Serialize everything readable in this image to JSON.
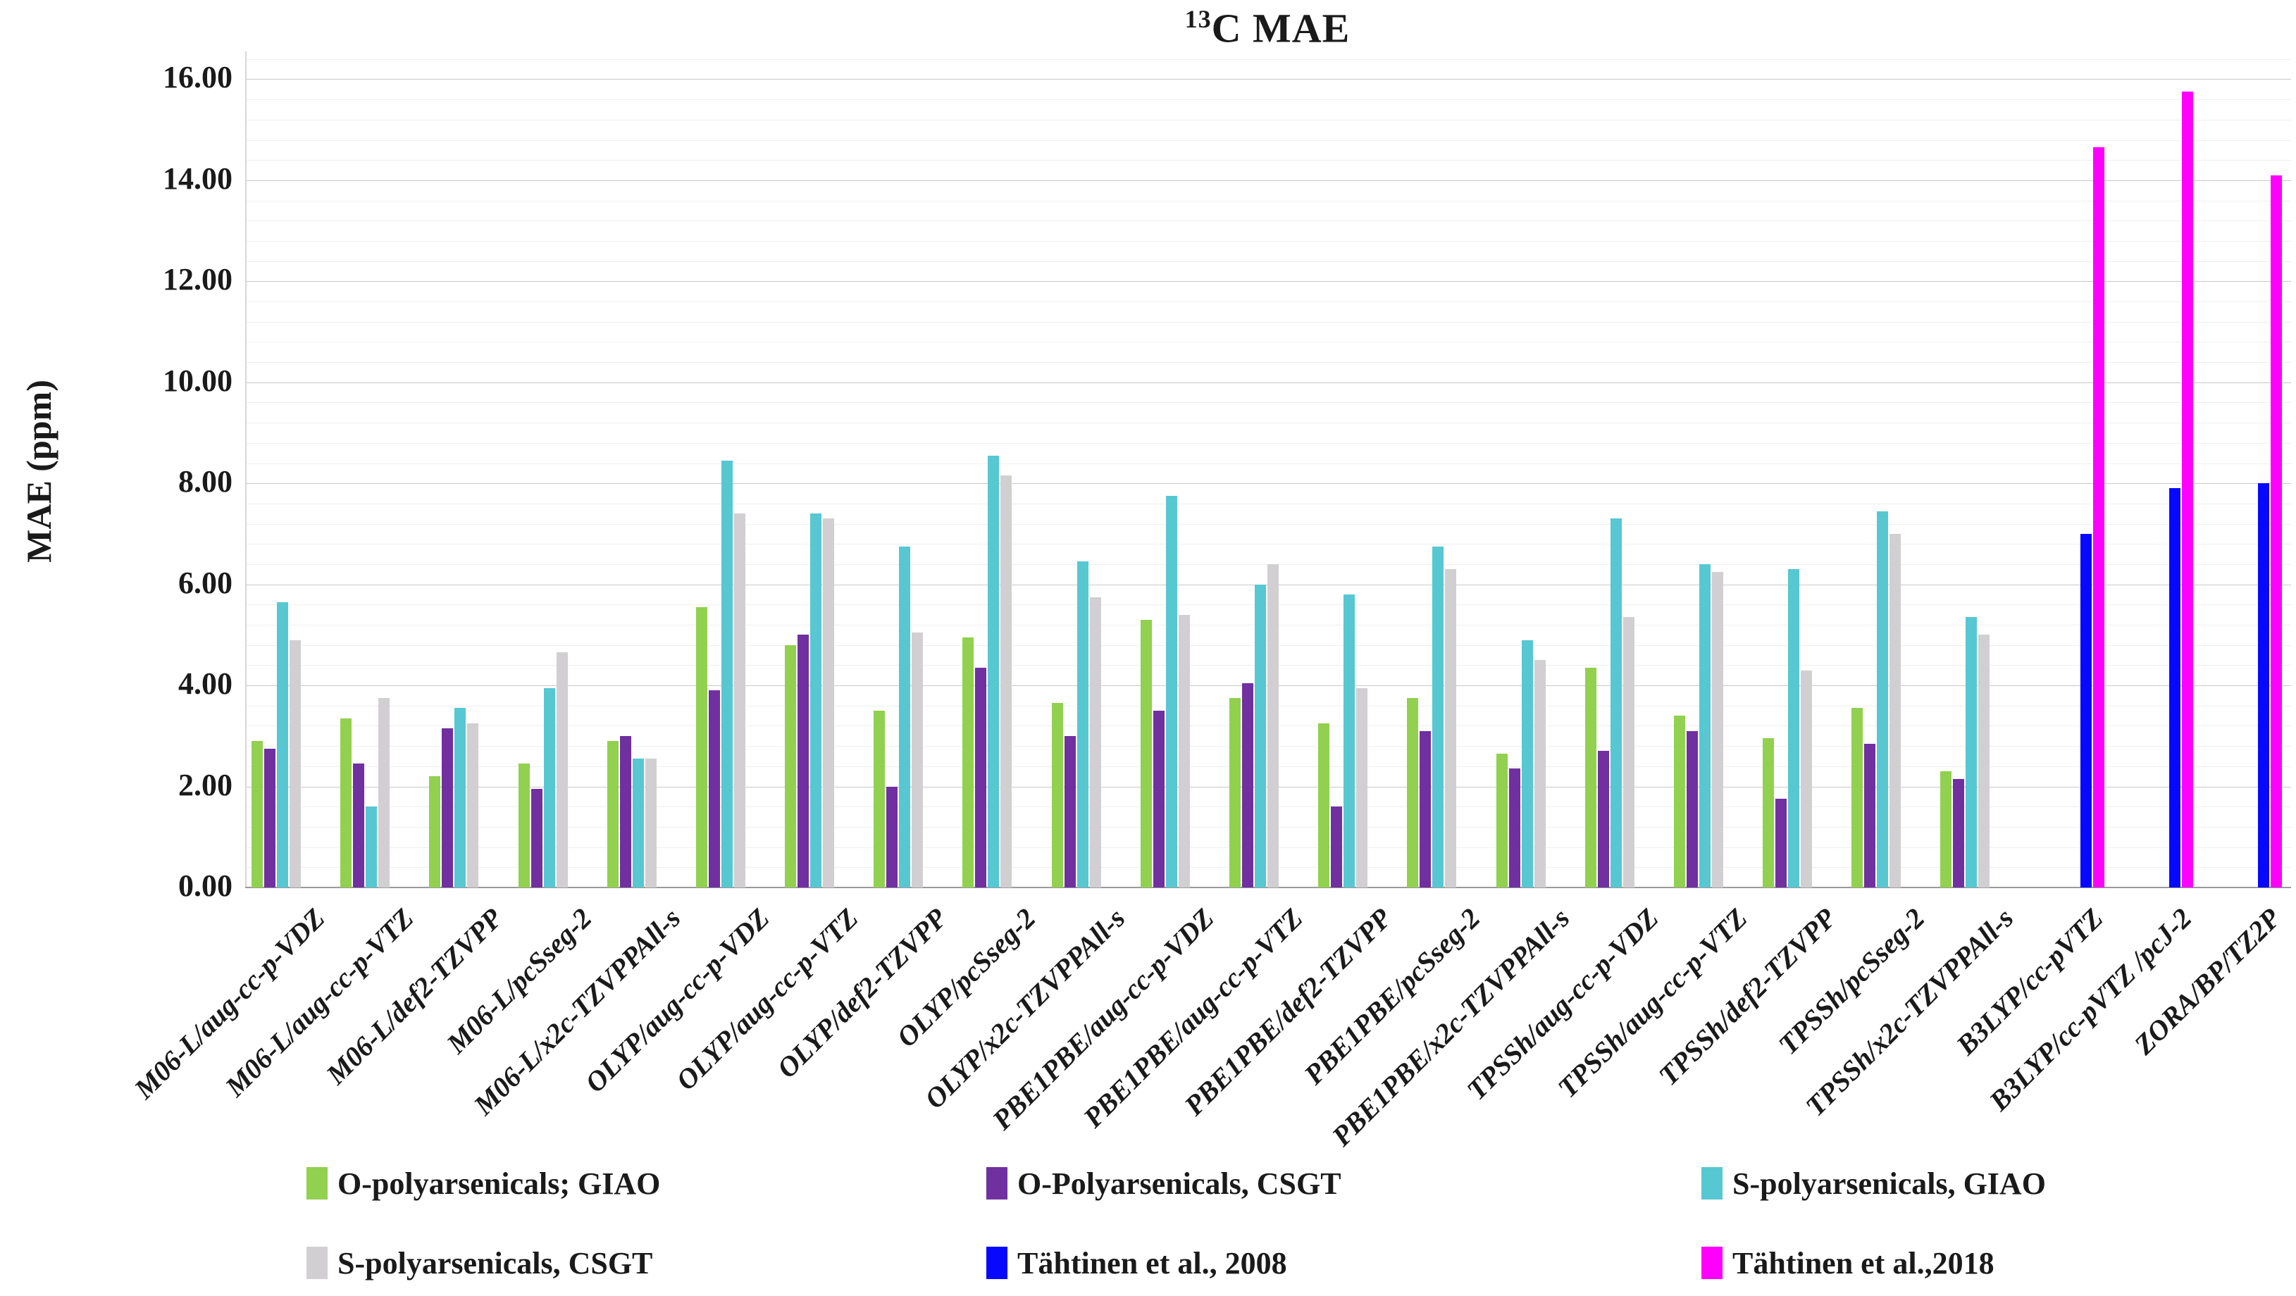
{
  "title": {
    "sup": "13",
    "main": "C MAE"
  },
  "y_axis": {
    "title": "MAE (ppm)",
    "tick_labels": [
      "0.00",
      "2.00",
      "4.00",
      "6.00",
      "8.00",
      "10.00",
      "12.00",
      "14.00",
      "16.00"
    ]
  },
  "chart_data": {
    "type": "bar",
    "title": "13C MAE",
    "xlabel": "",
    "ylabel": "MAE (ppm)",
    "ylim": [
      0,
      16.55
    ],
    "grid": {
      "major_step": 2.0,
      "minor_step": 0.4,
      "minor_max": 16.4
    },
    "legend_position": "bottom",
    "categories": [
      "M06-L/aug-cc-p-VDZ",
      "M06-L/aug-cc-p-VTZ",
      "M06-L/def2-TZVPP",
      "M06-L/pcSseg-2",
      "M06-L/x2c-TZVPPAll-s",
      "OLYP/aug-cc-p-VDZ",
      "OLYP/aug-cc-p-VTZ",
      "OLYP/def2-TZVPP",
      "OLYP/pcSseg-2",
      "OLYP/x2c-TZVPPAll-s",
      "PBE1PBE/aug-cc-p-VDZ",
      "PBE1PBE/aug-cc-p-VTZ",
      "PBE1PBE/def2-TZVPP",
      "PBE1PBE/pcSseg-2",
      "PBE1PBE/x2c-TZVPPAll-s",
      "TPSSh/aug-cc-p-VDZ",
      "TPSSh/aug-cc-p-VTZ",
      "TPSSh/def2-TZVPP",
      "TPSSh/pcSseg-2",
      "TPSSh/x2c-TZVPPAll-s",
      "B3LYP/cc-pVTZ",
      "B3LYP/cc-pVTZ /pcJ-2",
      "ZORA/BP/TZ2P"
    ],
    "series": [
      {
        "name": "O-polyarsenicals; GIAO",
        "color": "#92D050",
        "values": [
          2.9,
          3.35,
          2.2,
          2.45,
          2.9,
          5.55,
          4.8,
          3.5,
          4.95,
          3.65,
          5.3,
          3.75,
          3.25,
          3.75,
          2.65,
          4.35,
          3.4,
          2.95,
          3.55,
          2.3,
          null,
          null,
          null
        ]
      },
      {
        "name": "O-Polyarsenicals, CSGT",
        "color": "#7030A0",
        "values": [
          2.75,
          2.45,
          3.15,
          1.95,
          3.0,
          3.9,
          5.0,
          2.0,
          4.35,
          3.0,
          3.5,
          4.05,
          1.6,
          3.1,
          2.35,
          2.7,
          3.1,
          1.75,
          2.85,
          2.15,
          null,
          null,
          null
        ]
      },
      {
        "name": "S-polyarsenicals, GIAO",
        "color": "#57C7D2",
        "values": [
          5.65,
          1.6,
          3.55,
          3.95,
          2.55,
          8.45,
          7.4,
          6.75,
          8.55,
          6.45,
          7.75,
          6.0,
          5.8,
          6.75,
          4.9,
          7.3,
          6.4,
          6.3,
          7.45,
          5.35,
          null,
          null,
          null
        ]
      },
      {
        "name": "S-polyarsenicals, CSGT",
        "color": "#D2CFD2",
        "values": [
          4.9,
          3.75,
          3.25,
          4.65,
          2.55,
          7.4,
          7.3,
          5.05,
          8.15,
          5.75,
          5.4,
          6.4,
          3.95,
          6.3,
          4.5,
          5.35,
          6.25,
          4.3,
          7.0,
          5.0,
          null,
          null,
          null
        ]
      },
      {
        "name": "Tähtinen et al., 2008",
        "color": "#0808FF",
        "values": [
          null,
          null,
          null,
          null,
          null,
          null,
          null,
          null,
          null,
          null,
          null,
          null,
          null,
          null,
          null,
          null,
          null,
          null,
          null,
          null,
          7.0,
          7.9,
          8.0
        ]
      },
      {
        "name": "Tähtinen et al.,2018",
        "color": "#FF00FF",
        "values": [
          null,
          null,
          null,
          null,
          null,
          null,
          null,
          null,
          null,
          null,
          null,
          null,
          null,
          null,
          null,
          null,
          null,
          null,
          null,
          null,
          14.65,
          15.75,
          14.1
        ]
      }
    ]
  },
  "legend": {
    "order": [
      0,
      1,
      2,
      3,
      4,
      5
    ]
  }
}
